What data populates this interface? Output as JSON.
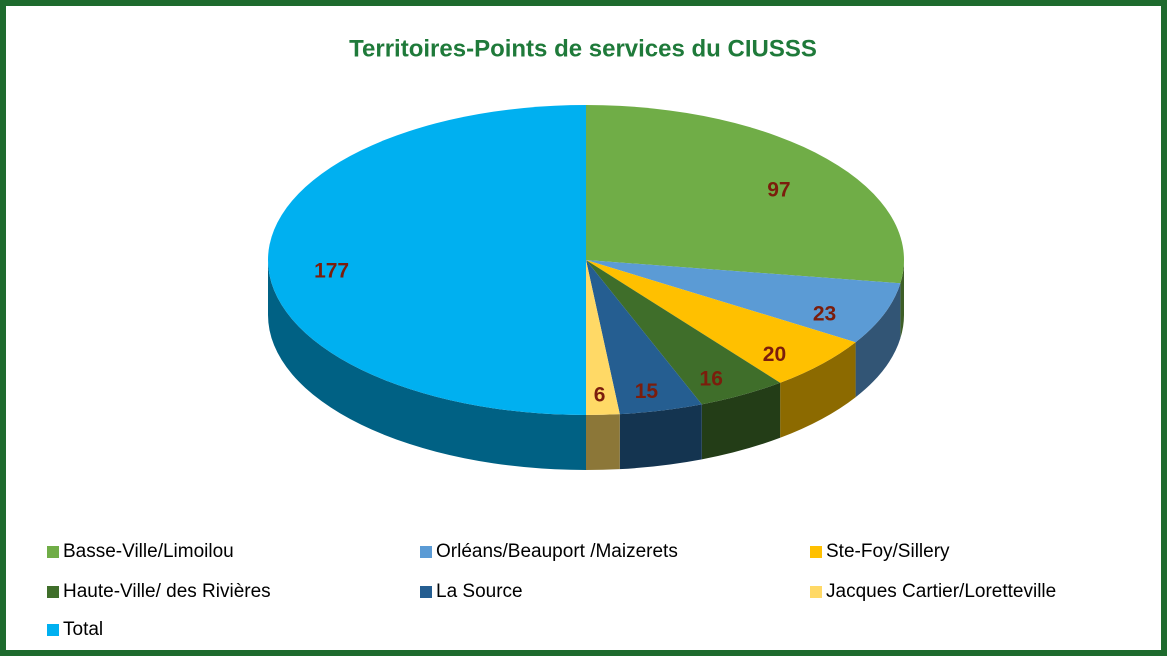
{
  "chart_data": {
    "type": "pie",
    "title": "Territoires-Points de services du CIUSSS",
    "categories": [
      "Basse-Ville/Limoilou",
      "Orléans/Beauport /Maizerets",
      "Ste-Foy/Sillery",
      "Haute-Ville/ des Rivières",
      "La Source",
      "Jacques Cartier/Loretteville",
      "Total"
    ],
    "values": [
      97,
      23,
      20,
      16,
      15,
      6,
      177
    ],
    "colors": [
      "#70ad47",
      "#5b9bd5",
      "#ffc000",
      "#3f6e2a",
      "#255e91",
      "#ffd966",
      "#00b0f0"
    ],
    "label_color": "#7b1d0c",
    "legend": "bottom"
  }
}
